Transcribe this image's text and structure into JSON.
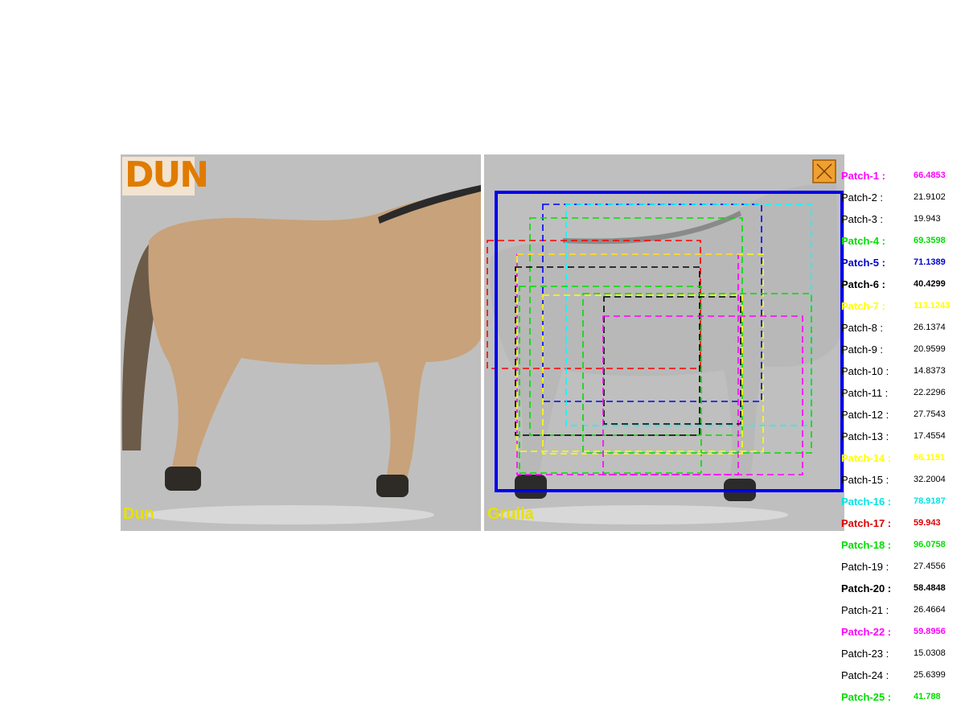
{
  "images": {
    "left": {
      "badge": "DUN",
      "caption": "Dun"
    },
    "right": {
      "caption": "Grulla"
    }
  },
  "colors": {
    "magenta": "#ff00ff",
    "green": "#00dd00",
    "blue": "#0000ff",
    "black": "#000000",
    "yellow": "#ffff00",
    "cyan": "#00ffff",
    "red": "#ff0000",
    "dun_coat": "#c8a27a",
    "grulla_coat": "#b8b8b8",
    "background": "#bfbfbf",
    "badge_text": "#e07b00",
    "caption_text": "#e8e000"
  },
  "icons": {
    "close": "close-x-icon"
  },
  "patches": [
    {
      "label": "Patch-1 :",
      "value": "66.4853",
      "color": "#ff00ff",
      "highlighted": true
    },
    {
      "label": "Patch-2 :",
      "value": "21.9102",
      "color": "#000000",
      "highlighted": false
    },
    {
      "label": "Patch-3 :",
      "value": "19.943",
      "color": "#000000",
      "highlighted": false
    },
    {
      "label": "Patch-4 :",
      "value": "69.3598",
      "color": "#00dd00",
      "highlighted": true
    },
    {
      "label": "Patch-5 :",
      "value": "71.1389",
      "color": "#0000cc",
      "highlighted": true
    },
    {
      "label": "Patch-6 :",
      "value": "40.4299",
      "color": "#000000",
      "highlighted": true
    },
    {
      "label": "Patch-7 :",
      "value": "113.1243",
      "color": "#ffff00",
      "highlighted": true
    },
    {
      "label": "Patch-8 :",
      "value": "26.1374",
      "color": "#000000",
      "highlighted": false
    },
    {
      "label": "Patch-9 :",
      "value": "20.9599",
      "color": "#000000",
      "highlighted": false
    },
    {
      "label": "Patch-10 :",
      "value": "14.8373",
      "color": "#000000",
      "highlighted": false
    },
    {
      "label": "Patch-11 :",
      "value": "22.2296",
      "color": "#000000",
      "highlighted": false
    },
    {
      "label": "Patch-12 :",
      "value": "27.7543",
      "color": "#000000",
      "highlighted": false
    },
    {
      "label": "Patch-13 :",
      "value": "17.4554",
      "color": "#000000",
      "highlighted": false
    },
    {
      "label": "Patch-14 :",
      "value": "56.1151",
      "color": "#ffff00",
      "highlighted": true
    },
    {
      "label": "Patch-15 :",
      "value": "32.2004",
      "color": "#000000",
      "highlighted": false
    },
    {
      "label": "Patch-16 :",
      "value": "78.9187",
      "color": "#00e5e5",
      "highlighted": true
    },
    {
      "label": "Patch-17 :",
      "value": "59.943",
      "color": "#dd0000",
      "highlighted": true
    },
    {
      "label": "Patch-18 :",
      "value": "96.0758",
      "color": "#00dd00",
      "highlighted": true
    },
    {
      "label": "Patch-19 :",
      "value": "27.4556",
      "color": "#000000",
      "highlighted": false
    },
    {
      "label": "Patch-20 :",
      "value": "58.4848",
      "color": "#000000",
      "highlighted": true
    },
    {
      "label": "Patch-21 :",
      "value": "26.4664",
      "color": "#000000",
      "highlighted": false
    },
    {
      "label": "Patch-22 :",
      "value": "59.8956",
      "color": "#ff00ff",
      "highlighted": true
    },
    {
      "label": "Patch-23 :",
      "value": "15.0308",
      "color": "#000000",
      "highlighted": false
    },
    {
      "label": "Patch-24 :",
      "value": "25.6399",
      "color": "#000000",
      "highlighted": false
    },
    {
      "label": "Patch-25 :",
      "value": "41.788",
      "color": "#00dd00",
      "highlighted": true
    }
  ]
}
